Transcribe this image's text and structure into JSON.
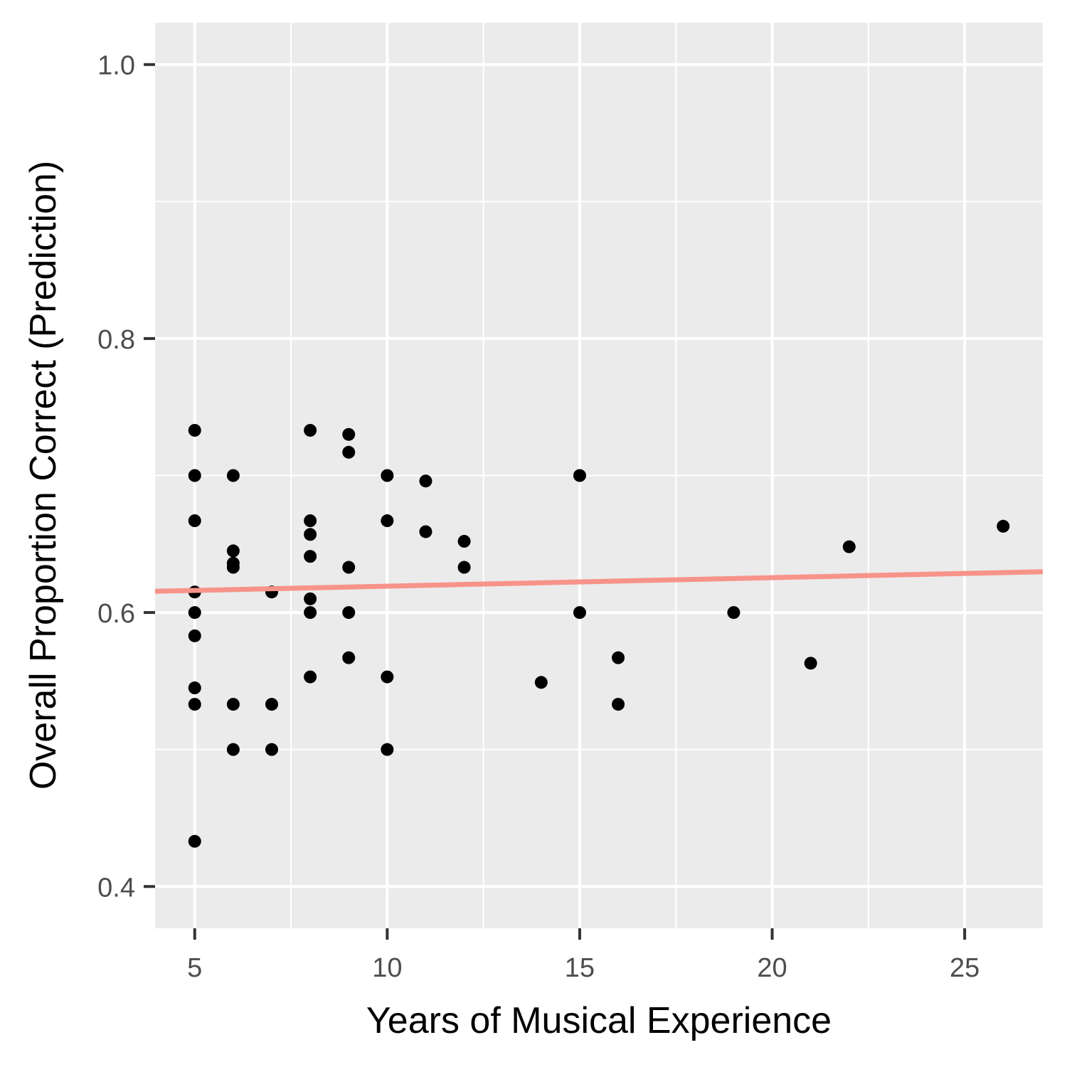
{
  "chart_data": {
    "type": "scatter",
    "title": "",
    "xlabel": "Years of Musical Experience",
    "ylabel": "Overall Proportion Correct (Prediction)",
    "xlim": [
      3.97,
      27.03
    ],
    "ylim": [
      0.3695,
      1.0305
    ],
    "x_ticks": [
      5,
      10,
      15,
      20,
      25
    ],
    "x_tick_labels": [
      "5",
      "10",
      "15",
      "20",
      "25"
    ],
    "x_minor_ticks": [
      7.5,
      12.5,
      17.5,
      22.5
    ],
    "y_ticks": [
      0.4,
      0.6,
      0.8,
      1.0
    ],
    "y_tick_labels": [
      "0.4",
      "0.6",
      "0.8",
      "1.0"
    ],
    "y_minor_ticks": [
      0.5,
      0.7,
      0.9
    ],
    "grid": true,
    "panel_background": "#ebebeb",
    "grid_color": "#ffffff",
    "point_color": "#000000",
    "points": [
      {
        "x": 5,
        "y": 0.733
      },
      {
        "x": 5,
        "y": 0.7
      },
      {
        "x": 5,
        "y": 0.667
      },
      {
        "x": 5,
        "y": 0.615
      },
      {
        "x": 5,
        "y": 0.6
      },
      {
        "x": 5,
        "y": 0.583
      },
      {
        "x": 5,
        "y": 0.545
      },
      {
        "x": 5,
        "y": 0.533
      },
      {
        "x": 5,
        "y": 0.433
      },
      {
        "x": 6,
        "y": 0.7
      },
      {
        "x": 6,
        "y": 0.645
      },
      {
        "x": 6,
        "y": 0.636
      },
      {
        "x": 6,
        "y": 0.633
      },
      {
        "x": 6,
        "y": 0.533
      },
      {
        "x": 6,
        "y": 0.5
      },
      {
        "x": 7,
        "y": 0.615
      },
      {
        "x": 7,
        "y": 0.533
      },
      {
        "x": 7,
        "y": 0.5
      },
      {
        "x": 8,
        "y": 0.733
      },
      {
        "x": 8,
        "y": 0.667
      },
      {
        "x": 8,
        "y": 0.657
      },
      {
        "x": 8,
        "y": 0.641
      },
      {
        "x": 8,
        "y": 0.61
      },
      {
        "x": 8,
        "y": 0.6
      },
      {
        "x": 8,
        "y": 0.553
      },
      {
        "x": 9,
        "y": 0.73
      },
      {
        "x": 9,
        "y": 0.717
      },
      {
        "x": 9,
        "y": 0.633
      },
      {
        "x": 9,
        "y": 0.6
      },
      {
        "x": 9,
        "y": 0.567
      },
      {
        "x": 10,
        "y": 0.7
      },
      {
        "x": 10,
        "y": 0.667
      },
      {
        "x": 10,
        "y": 0.553
      },
      {
        "x": 10,
        "y": 0.5
      },
      {
        "x": 11,
        "y": 0.696
      },
      {
        "x": 11,
        "y": 0.659
      },
      {
        "x": 12,
        "y": 0.652
      },
      {
        "x": 12,
        "y": 0.633
      },
      {
        "x": 14,
        "y": 0.549
      },
      {
        "x": 15,
        "y": 0.7
      },
      {
        "x": 15,
        "y": 0.6
      },
      {
        "x": 16,
        "y": 0.567
      },
      {
        "x": 16,
        "y": 0.533
      },
      {
        "x": 19,
        "y": 0.6
      },
      {
        "x": 21,
        "y": 0.563
      },
      {
        "x": 22,
        "y": 0.648
      },
      {
        "x": 26,
        "y": 0.663
      }
    ],
    "trend_line": {
      "x": [
        3.97,
        27.03
      ],
      "y": [
        0.6155,
        0.6298
      ],
      "color": "#f8938a"
    }
  }
}
